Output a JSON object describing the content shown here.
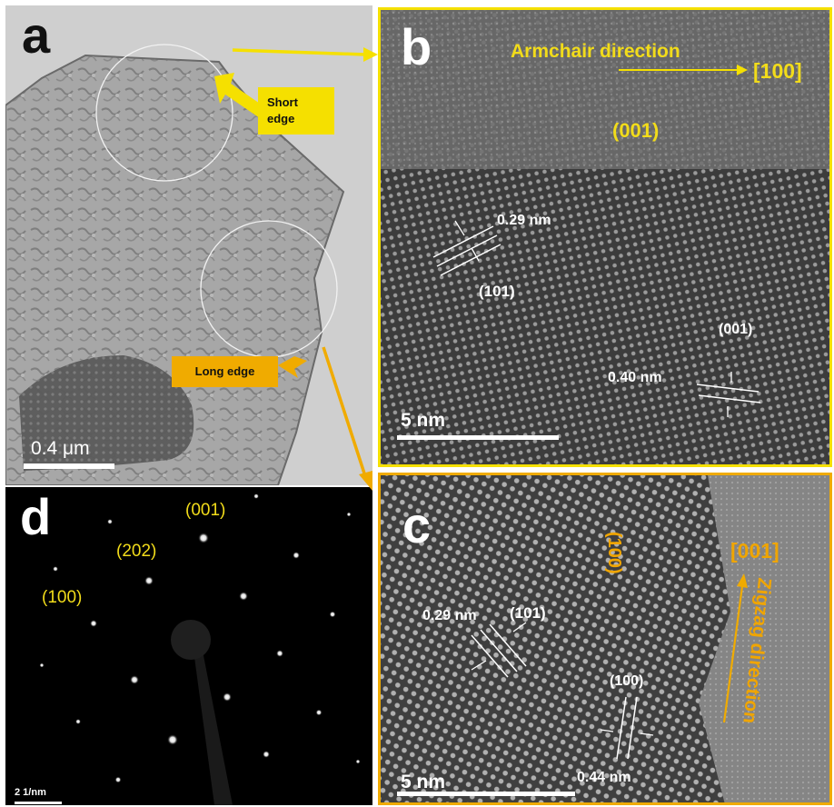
{
  "panel_a": {
    "letter": "a",
    "short_edge": "Short\nedge",
    "long_edge": "Long edge",
    "scale_bar": "0.4 μm"
  },
  "panel_b": {
    "letter": "b",
    "armchair_direction": "Armchair direction",
    "direction_index": "[100]",
    "plane_top": "(001)",
    "spacing_1": "0.29 nm",
    "plane_1": "(101)",
    "plane_2": "(001)",
    "spacing_2": "0.40 nm",
    "scale_bar": "5 nm"
  },
  "panel_c": {
    "letter": "c",
    "plane_rotated": "(100)",
    "direction_index": "[001]",
    "zigzag_direction": "Zigzag direction",
    "spacing_1": "0.29 nm",
    "plane_1": "(101)",
    "plane_2": "(100)",
    "spacing_2": "0.44 nm",
    "scale_bar": "5 nm"
  },
  "panel_d": {
    "letter": "d",
    "spot_001": "(001)",
    "spot_202": "(202)",
    "spot_100": "(100)",
    "scale_bar": "2 1/nm"
  },
  "colors": {
    "yellow": "#f5e000",
    "orange": "#f0ab00",
    "yellow_text": "#f2dc1a",
    "orange_text": "#f0a500"
  }
}
